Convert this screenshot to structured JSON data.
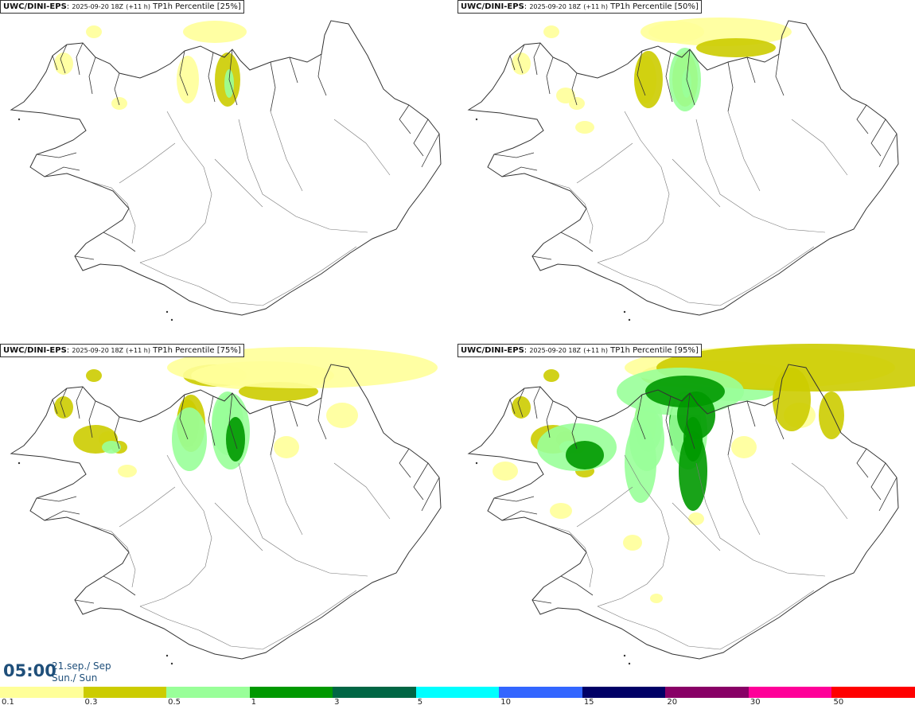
{
  "panels": [
    {
      "model": "UWC/DINI-EPS",
      "run": "2025-09-20 18Z",
      "lead": "(+11 h)",
      "product": "TP1h Percentile [25%]",
      "intensity": 1
    },
    {
      "model": "UWC/DINI-EPS",
      "run": "2025-09-20 18Z",
      "lead": "(+11 h)",
      "product": "TP1h Percentile [50%]",
      "intensity": 2
    },
    {
      "model": "UWC/DINI-EPS",
      "run": "2025-09-20 18Z",
      "lead": "(+11 h)",
      "product": "TP1h Percentile [75%]",
      "intensity": 3
    },
    {
      "model": "UWC/DINI-EPS",
      "run": "2025-09-20 18Z",
      "lead": "(+11 h)",
      "product": "TP1h Percentile [95%]",
      "intensity": 4
    }
  ],
  "valid_time": {
    "time": "05:00",
    "date_line1": "21.sep./ Sep",
    "date_line2": "Sun./ Sun"
  },
  "legend": {
    "colors": [
      "#ffff99",
      "#cccc00",
      "#99ff99",
      "#009900",
      "#006644",
      "#00ffff",
      "#3366ff",
      "#000066",
      "#880066",
      "#ff0099",
      "#ff0000"
    ],
    "labels": [
      "0.1",
      "0.3",
      "0.5",
      "1",
      "3",
      "5",
      "10",
      "15",
      "20",
      "30",
      "50"
    ]
  }
}
